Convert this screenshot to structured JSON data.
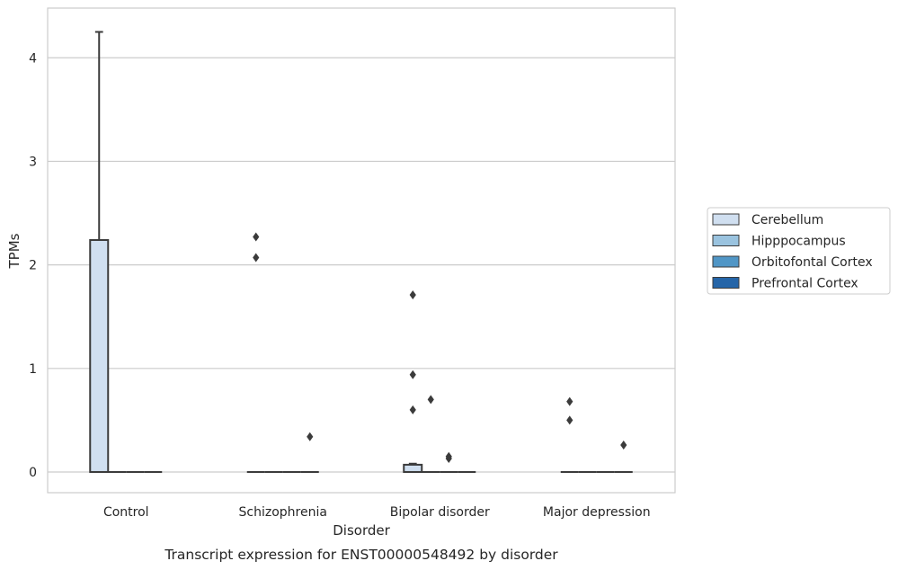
{
  "chart_data": {
    "type": "box",
    "caption": "Transcript expression for ENST00000548492 by disorder",
    "xlabel": "Disorder",
    "ylabel": "TPMs",
    "ylim": [
      -0.2,
      4.48
    ],
    "yticks": [
      0,
      1,
      2,
      3,
      4
    ],
    "grid": "horizontal",
    "legend_position": "right",
    "categories": [
      "Control",
      "Schizophrenia",
      "Bipolar disorder",
      "Major depression"
    ],
    "series": [
      {
        "name": "Cerebellum",
        "color": "#d0dff0"
      },
      {
        "name": "Hipppocampus",
        "color": "#9ac3df"
      },
      {
        "name": "Orbitofontal Cortex",
        "color": "#5096c6"
      },
      {
        "name": "Prefrontal Cortex",
        "color": "#2565a8"
      }
    ],
    "boxes": [
      {
        "category": "Control",
        "series": "Cerebellum",
        "q1": 0,
        "median": 0,
        "q3": 2.24,
        "whisker_low": 0,
        "whisker_high": 4.25,
        "outliers": []
      },
      {
        "category": "Control",
        "series": "Hipppocampus",
        "q1": 0,
        "median": 0,
        "q3": 0,
        "whisker_low": 0,
        "whisker_high": 0,
        "outliers": []
      },
      {
        "category": "Control",
        "series": "Orbitofontal Cortex",
        "q1": 0,
        "median": 0,
        "q3": 0,
        "whisker_low": 0,
        "whisker_high": 0,
        "outliers": []
      },
      {
        "category": "Control",
        "series": "Prefrontal Cortex",
        "q1": 0,
        "median": 0,
        "q3": 0,
        "whisker_low": 0,
        "whisker_high": 0,
        "outliers": []
      },
      {
        "category": "Schizophrenia",
        "series": "Cerebellum",
        "q1": 0,
        "median": 0,
        "q3": 0,
        "whisker_low": 0,
        "whisker_high": 0,
        "outliers": [
          2.27,
          2.07
        ]
      },
      {
        "category": "Schizophrenia",
        "series": "Hipppocampus",
        "q1": 0,
        "median": 0,
        "q3": 0,
        "whisker_low": 0,
        "whisker_high": 0,
        "outliers": []
      },
      {
        "category": "Schizophrenia",
        "series": "Orbitofontal Cortex",
        "q1": 0,
        "median": 0,
        "q3": 0,
        "whisker_low": 0,
        "whisker_high": 0,
        "outliers": []
      },
      {
        "category": "Schizophrenia",
        "series": "Prefrontal Cortex",
        "q1": 0,
        "median": 0,
        "q3": 0,
        "whisker_low": 0,
        "whisker_high": 0,
        "outliers": [
          0.34
        ]
      },
      {
        "category": "Bipolar disorder",
        "series": "Cerebellum",
        "q1": 0,
        "median": 0,
        "q3": 0.07,
        "whisker_low": 0,
        "whisker_high": 0.08,
        "outliers": [
          1.71,
          0.94,
          0.6
        ]
      },
      {
        "category": "Bipolar disorder",
        "series": "Hipppocampus",
        "q1": 0,
        "median": 0,
        "q3": 0,
        "whisker_low": 0,
        "whisker_high": 0,
        "outliers": [
          0.7
        ]
      },
      {
        "category": "Bipolar disorder",
        "series": "Orbitofontal Cortex",
        "q1": 0,
        "median": 0,
        "q3": 0,
        "whisker_low": 0,
        "whisker_high": 0,
        "outliers": [
          0.15,
          0.13
        ]
      },
      {
        "category": "Bipolar disorder",
        "series": "Prefrontal Cortex",
        "q1": 0,
        "median": 0,
        "q3": 0,
        "whisker_low": 0,
        "whisker_high": 0,
        "outliers": []
      },
      {
        "category": "Major depression",
        "series": "Cerebellum",
        "q1": 0,
        "median": 0,
        "q3": 0,
        "whisker_low": 0,
        "whisker_high": 0,
        "outliers": [
          0.68,
          0.5
        ]
      },
      {
        "category": "Major depression",
        "series": "Hipppocampus",
        "q1": 0,
        "median": 0,
        "q3": 0,
        "whisker_low": 0,
        "whisker_high": 0,
        "outliers": []
      },
      {
        "category": "Major depression",
        "series": "Orbitofontal Cortex",
        "q1": 0,
        "median": 0,
        "q3": 0,
        "whisker_low": 0,
        "whisker_high": 0,
        "outliers": []
      },
      {
        "category": "Major depression",
        "series": "Prefrontal Cortex",
        "q1": 0,
        "median": 0,
        "q3": 0,
        "whisker_low": 0,
        "whisker_high": 0,
        "outliers": [
          0.26
        ]
      }
    ]
  }
}
